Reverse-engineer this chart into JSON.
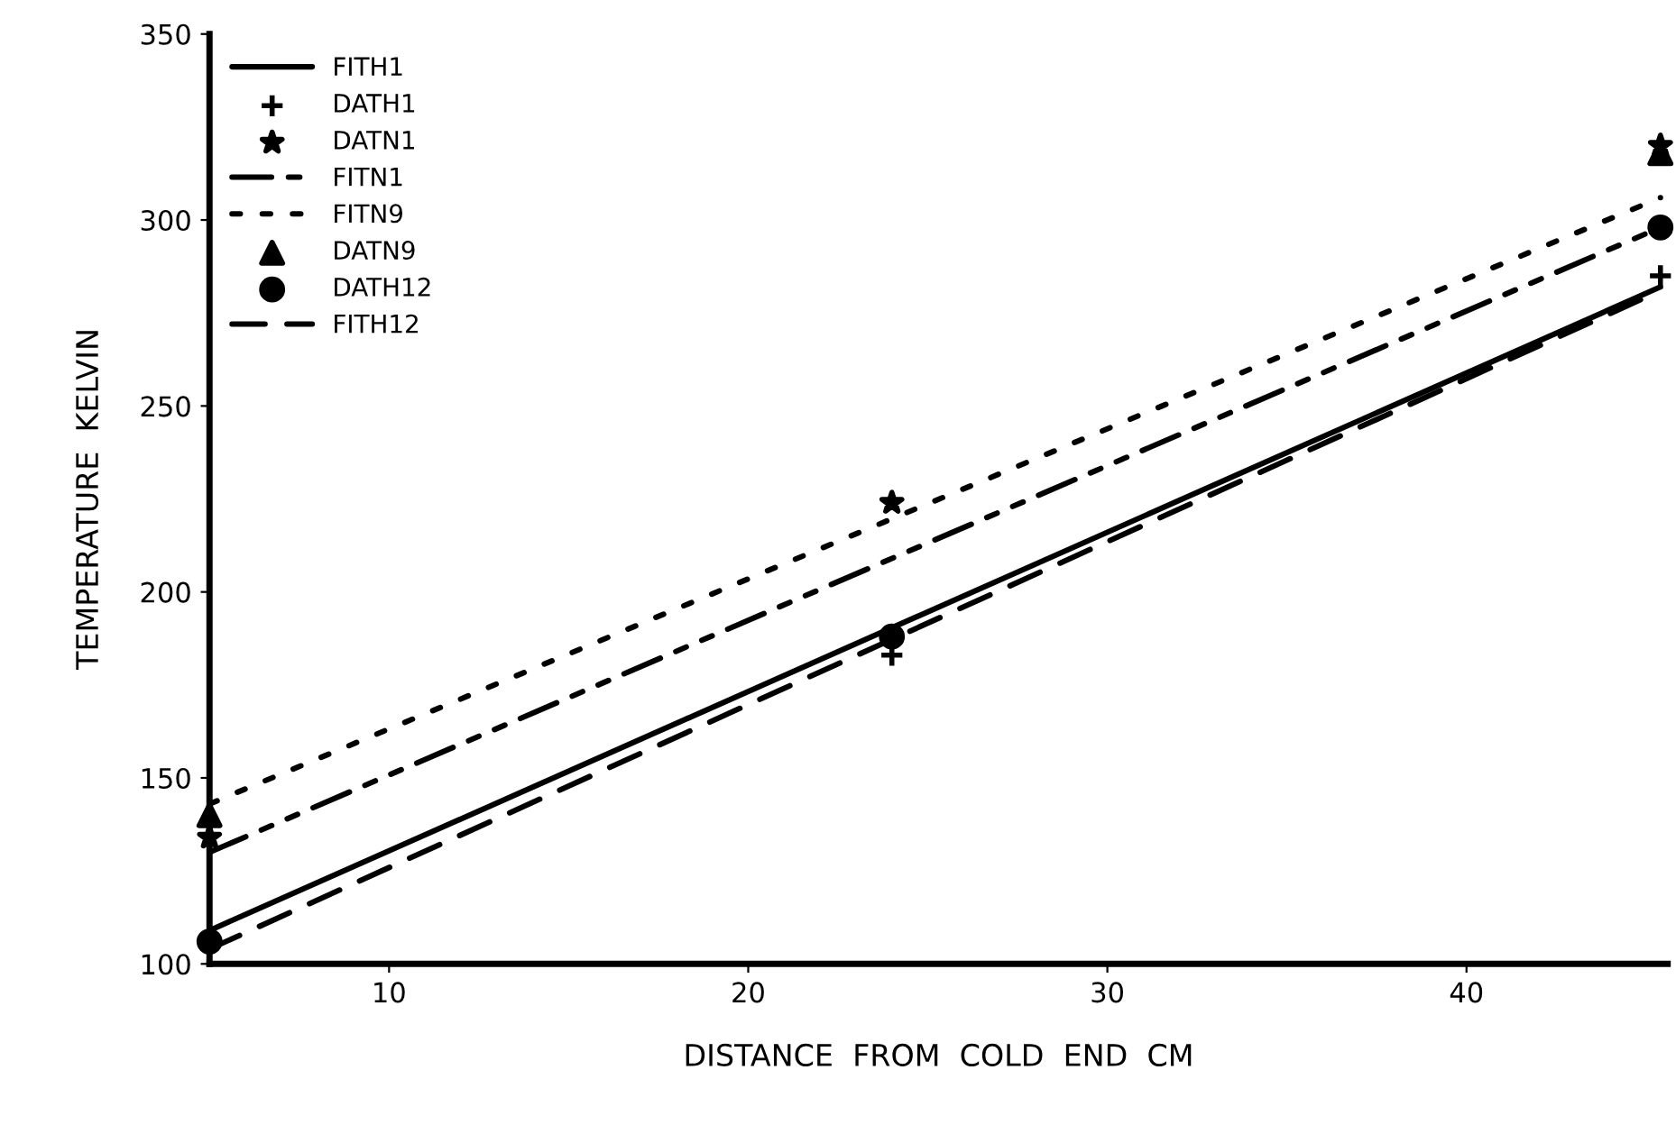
{
  "chart_data": {
    "type": "line",
    "xlabel": "DISTANCE  FROM  COLD  END  CM",
    "ylabel": "TEMPERATURE  KELVIN",
    "xlim": [
      5,
      45.6
    ],
    "xticks": [
      10,
      20,
      30,
      40
    ],
    "ylim": [
      100,
      350
    ],
    "yticks": [
      100,
      150,
      200,
      250,
      300,
      350
    ],
    "grid": false,
    "legend": "top left",
    "series": [
      {
        "name": "FITH1",
        "color": "#000000",
        "line_style": "solid",
        "marker": "none",
        "x": [
          5,
          45.4
        ],
        "values": [
          109,
          282
        ]
      },
      {
        "name": "DATH1",
        "type": "scatter",
        "color": "#000000",
        "marker": "cross",
        "x": [
          24,
          45.4
        ],
        "values": [
          183,
          285
        ]
      },
      {
        "name": "DATN1",
        "type": "scatter",
        "color": "#000000",
        "marker": "star",
        "x": [
          5,
          24,
          45.4
        ],
        "values": [
          134,
          224,
          320
        ]
      },
      {
        "name": "FITN1",
        "color": "#000000",
        "line_style": "dashdot",
        "marker": "none",
        "x": [
          5,
          45.4
        ],
        "values": [
          130,
          298
        ]
      },
      {
        "name": "FITN9",
        "color": "#000000",
        "line_style": "dotted",
        "marker": "none",
        "x": [
          5,
          45.4
        ],
        "values": [
          143,
          306
        ]
      },
      {
        "name": "DATN9",
        "type": "scatter",
        "color": "#000000",
        "marker": "triangle",
        "x": [
          5,
          24,
          45.4
        ],
        "values": [
          140,
          null,
          318
        ]
      },
      {
        "name": "DATH12",
        "type": "scatter",
        "color": "#000000",
        "marker": "circle",
        "x": [
          5,
          24,
          45.4
        ],
        "values": [
          106,
          188,
          298
        ]
      },
      {
        "name": "FITH12",
        "color": "#000000",
        "line_style": "dashed",
        "marker": "none",
        "x": [
          5,
          45.4
        ],
        "values": [
          104,
          281
        ]
      }
    ]
  }
}
